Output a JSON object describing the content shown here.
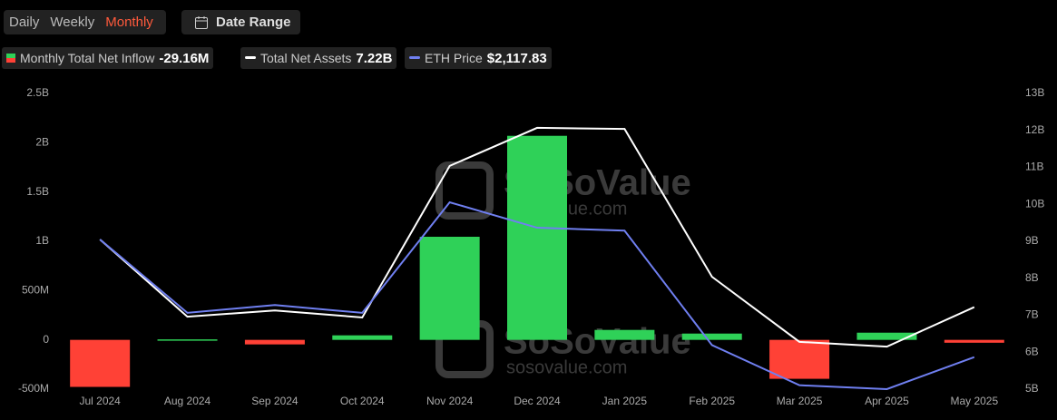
{
  "controls": {
    "periods": [
      "Daily",
      "Weekly",
      "Monthly"
    ],
    "active_period": 2,
    "date_range": "Date Range"
  },
  "watermark": {
    "brand": "SoSoValue",
    "url": "sosovalue.com"
  },
  "chart_data": {
    "type": "bar",
    "categories": [
      "Jul 2024",
      "Aug 2024",
      "Sep 2024",
      "Oct 2024",
      "Nov 2024",
      "Dec 2024",
      "Jan 2025",
      "Feb 2025",
      "Mar 2025",
      "Apr 2025",
      "May 2025"
    ],
    "series": [
      {
        "name": "Monthly Total Net Inflow",
        "latest_label": "-29.16M",
        "type": "bar",
        "color": "#2fd158",
        "negative_color": "#ff4136",
        "values": [
          -477000000,
          5000000,
          -46000000,
          46000000,
          1046000000,
          2070000000,
          101000000,
          64000000,
          -395000000,
          73000000,
          -29160000
        ]
      },
      {
        "name": "Total Net Assets",
        "latest_label": "7.22B",
        "type": "line",
        "axis": "y2",
        "color": "#ffffff",
        "values": [
          9050000000,
          6960000000,
          7130000000,
          6940000000,
          11040000000,
          12070000000,
          12040000000,
          8040000000,
          6280000000,
          6150000000,
          7220000000
        ]
      },
      {
        "name": "ETH Price",
        "latest_label": "$2,117.83",
        "type": "line",
        "axis": "hidden",
        "color": "#6f7ff0",
        "values": [
          3320,
          2570,
          2650,
          2570,
          3700,
          3440,
          3410,
          2240,
          1830,
          1790,
          2117.83
        ]
      }
    ],
    "ylim": [
      -500000000,
      2500000000
    ],
    "yticks": [
      {
        "value": -500000000,
        "label": "-500M"
      },
      0,
      {
        "value": 500000000,
        "label": "500M"
      },
      {
        "value": 1000000000,
        "label": "1B"
      },
      {
        "value": 1500000000,
        "label": "1.5B"
      },
      {
        "value": 2000000000,
        "label": "2B"
      },
      {
        "value": 2500000000,
        "label": "2.5B"
      }
    ],
    "y2lim": [
      5000000000,
      13000000000
    ],
    "y2ticks": [
      {
        "value": 5000000000,
        "label": "5B"
      },
      {
        "value": 6000000000,
        "label": "6B"
      },
      {
        "value": 7000000000,
        "label": "7B"
      },
      {
        "value": 8000000000,
        "label": "8B"
      },
      {
        "value": 9000000000,
        "label": "9B"
      },
      {
        "value": 10000000000,
        "label": "10B"
      },
      {
        "value": 11000000000,
        "label": "11B"
      },
      {
        "value": 12000000000,
        "label": "12B"
      },
      {
        "value": 13000000000,
        "label": "13B"
      }
    ],
    "grid": false
  }
}
